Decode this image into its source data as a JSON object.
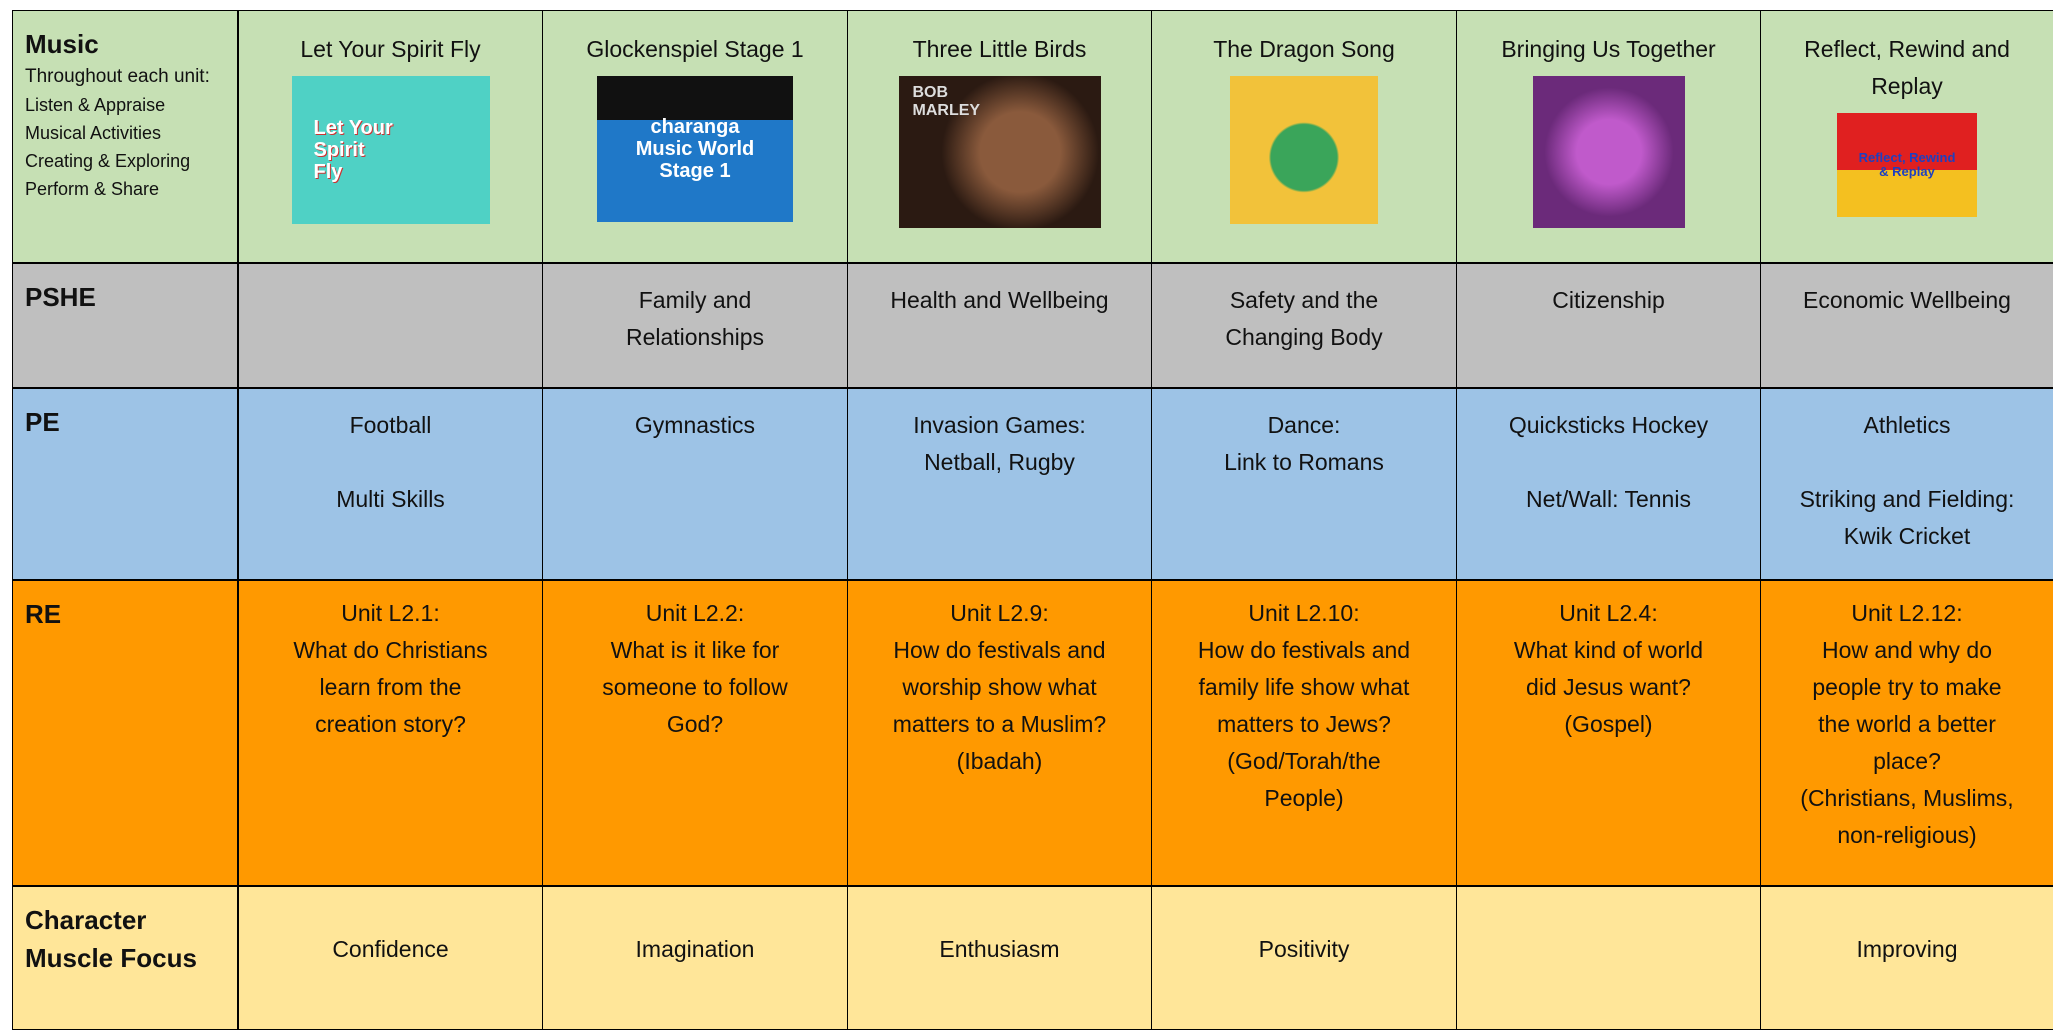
{
  "table": {
    "rows": [
      {
        "label": "Music",
        "notes": [
          "Throughout each unit:",
          "Listen & Appraise",
          "Musical Activities",
          "Creating & Exploring",
          "Perform & Share"
        ],
        "cells": [
          {
            "title": "Let Your Spirit Fly",
            "image_text": [
              "Let Your",
              "Spirit",
              "Fly"
            ]
          },
          {
            "title": "Glockenspiel Stage 1",
            "image_text": [
              "charanga",
              "Music World",
              "Stage 1"
            ]
          },
          {
            "title": "Three Little Birds",
            "image_text": [
              "BOB",
              "MARLEY"
            ]
          },
          {
            "title": "The Dragon Song"
          },
          {
            "title": "Bringing Us Together"
          },
          {
            "title": "Reflect, Rewind and Replay",
            "image_text": [
              "Reflect, Rewind",
              "& Replay"
            ]
          }
        ]
      },
      {
        "label": "PSHE",
        "cells": [
          [],
          [
            [
              "Family and",
              "Relationships"
            ]
          ],
          [
            [
              "Health and Wellbeing"
            ]
          ],
          [
            [
              "Safety and the",
              "Changing Body"
            ]
          ],
          [
            [
              "Citizenship"
            ]
          ],
          [
            [
              "Economic Wellbeing"
            ]
          ]
        ]
      },
      {
        "label": "PE",
        "cells": [
          [
            [
              "Football"
            ],
            [
              "Multi Skills"
            ]
          ],
          [
            [
              "Gymnastics"
            ]
          ],
          [
            [
              "Invasion Games:",
              "Netball, Rugby"
            ]
          ],
          [
            [
              "Dance:",
              "Link to Romans"
            ]
          ],
          [
            [
              "Quicksticks Hockey"
            ],
            [
              "Net/Wall: Tennis"
            ]
          ],
          [
            [
              "Athletics"
            ],
            [
              "Striking and Fielding:",
              "Kwik Cricket"
            ]
          ]
        ]
      },
      {
        "label": "RE",
        "cells": [
          [
            [
              "Unit L2.1:",
              "What do Christians",
              "learn from the",
              "creation story?"
            ]
          ],
          [
            [
              "Unit L2.2:",
              "What is it like for",
              "someone to follow",
              "God?"
            ]
          ],
          [
            [
              "Unit L2.9:",
              "How do festivals and",
              "worship show what",
              "matters to a Muslim?",
              "(Ibadah)"
            ]
          ],
          [
            [
              "Unit L2.10:",
              "How do festivals and",
              "family life show what",
              "matters to Jews?",
              "(God/Torah/the",
              "People)"
            ]
          ],
          [
            [
              "Unit L2.4:",
              "What kind of world",
              "did Jesus want?",
              "(Gospel)"
            ]
          ],
          [
            [
              "Unit L2.12:",
              "How and why do",
              "people try to make",
              "the world a better",
              "place?",
              "(Christians, Muslims,",
              "non-religious)"
            ]
          ]
        ]
      },
      {
        "label": "Character Muscle Focus",
        "cells": [
          [
            [
              "Confidence"
            ]
          ],
          [
            [
              "Imagination"
            ]
          ],
          [
            [
              "Enthusiasm"
            ]
          ],
          [
            [
              "Positivity"
            ]
          ],
          [],
          [
            [
              "Improving"
            ]
          ]
        ]
      }
    ]
  }
}
